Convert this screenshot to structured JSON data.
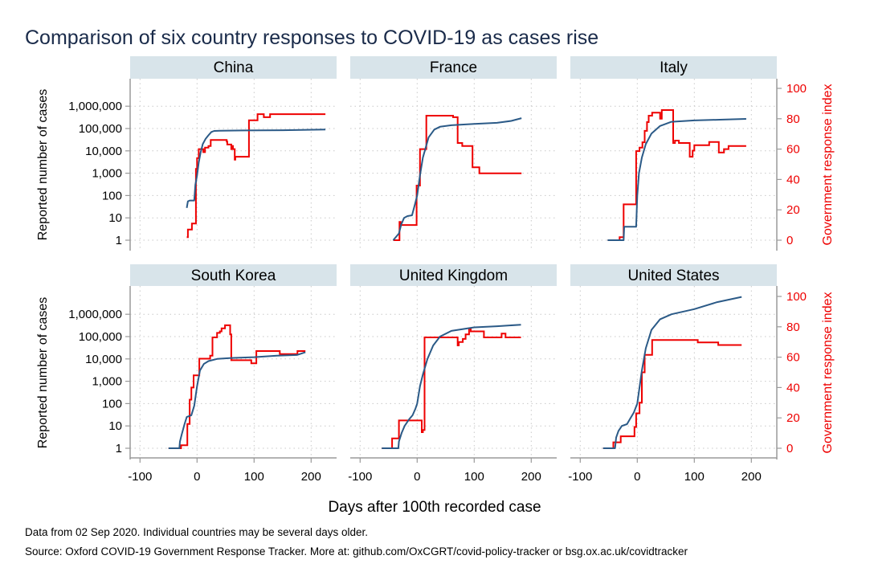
{
  "chart_data": {
    "type": "line",
    "title": "Comparison of six country responses to COVID-19 as cases rise",
    "xlabel": "Days after 100th recorded case",
    "ylabel_left": "Reported number of cases",
    "ylabel_right": "Government response index",
    "xticks": [
      -100,
      0,
      100,
      200
    ],
    "xtick_labels": [
      "-100",
      "0",
      "100",
      "200"
    ],
    "xlim": [
      -117,
      245
    ],
    "yscale_left": "log",
    "ylim_left_log10": [
      0,
      7.2
    ],
    "yticks_left": [
      1,
      10,
      100,
      1000,
      10000,
      100000,
      1000000
    ],
    "ytick_labels_left": [
      "1",
      "10",
      "100",
      "1,000",
      "10,000",
      "100,000",
      "1,000,000"
    ],
    "ylim_right": [
      0,
      105
    ],
    "yticks_right": [
      0,
      20,
      40,
      60,
      80,
      100
    ],
    "ytick_labels_right": [
      "0",
      "20",
      "40",
      "60",
      "80",
      "100"
    ],
    "grid": true,
    "colors": {
      "cases": "#2b5a87",
      "index": "#ee0000",
      "strip": "#d8e4ea"
    },
    "series_names": [
      "Reported number of cases",
      "Government response index"
    ],
    "panels": [
      {
        "name": "China",
        "cases": [
          [
            -18,
            28
          ],
          [
            -16,
            55
          ],
          [
            -13,
            60
          ],
          [
            -5,
            60
          ],
          [
            -3,
            300
          ],
          [
            0,
            800
          ],
          [
            3,
            3000
          ],
          [
            6,
            8000
          ],
          [
            10,
            20000
          ],
          [
            15,
            35000
          ],
          [
            20,
            50000
          ],
          [
            25,
            70000
          ],
          [
            30,
            78000
          ],
          [
            40,
            80000
          ],
          [
            80,
            82000
          ],
          [
            150,
            84000
          ],
          [
            225,
            90000
          ]
        ],
        "index": [
          [
            -18,
            2
          ],
          [
            -16,
            7
          ],
          [
            -11,
            7
          ],
          [
            -9,
            11
          ],
          [
            -5,
            11
          ],
          [
            -2,
            47
          ],
          [
            0,
            54
          ],
          [
            3,
            60
          ],
          [
            8,
            60
          ],
          [
            11,
            58
          ],
          [
            14,
            61
          ],
          [
            20,
            62
          ],
          [
            24,
            66
          ],
          [
            44,
            66
          ],
          [
            52,
            65
          ],
          [
            53,
            63
          ],
          [
            60,
            60
          ],
          [
            61,
            62
          ],
          [
            63,
            60
          ],
          [
            66,
            53
          ],
          [
            67,
            55
          ],
          [
            90,
            55
          ],
          [
            91,
            79
          ],
          [
            102,
            79
          ],
          [
            106,
            83
          ],
          [
            115,
            83
          ],
          [
            117,
            81
          ],
          [
            127,
            81
          ],
          [
            128,
            83
          ],
          [
            225,
            83
          ]
        ]
      },
      {
        "name": "France",
        "cases": [
          [
            -42,
            1
          ],
          [
            -32,
            2
          ],
          [
            -28,
            5
          ],
          [
            -23,
            10
          ],
          [
            -17,
            12
          ],
          [
            -9,
            13
          ],
          [
            -4,
            40
          ],
          [
            0,
            100
          ],
          [
            5,
            800
          ],
          [
            10,
            5000
          ],
          [
            20,
            40000
          ],
          [
            30,
            90000
          ],
          [
            40,
            120000
          ],
          [
            60,
            140000
          ],
          [
            100,
            160000
          ],
          [
            140,
            180000
          ],
          [
            165,
            220000
          ],
          [
            183,
            290000
          ]
        ],
        "index": [
          [
            -42,
            0
          ],
          [
            -32,
            0
          ],
          [
            -31,
            12
          ],
          [
            -29,
            10
          ],
          [
            -15,
            10
          ],
          [
            -1,
            36
          ],
          [
            3,
            36
          ],
          [
            5,
            60
          ],
          [
            8,
            60
          ],
          [
            16,
            82
          ],
          [
            60,
            82
          ],
          [
            63,
            81
          ],
          [
            69,
            81
          ],
          [
            71,
            64
          ],
          [
            79,
            62
          ],
          [
            96,
            62
          ],
          [
            97,
            48
          ],
          [
            106,
            48
          ],
          [
            109,
            44
          ],
          [
            183,
            44
          ]
        ]
      },
      {
        "name": "Italy",
        "cases": [
          [
            -52,
            1
          ],
          [
            -24,
            1
          ],
          [
            -23,
            4
          ],
          [
            -2,
            4
          ],
          [
            0,
            100
          ],
          [
            3,
            1000
          ],
          [
            8,
            5000
          ],
          [
            15,
            20000
          ],
          [
            25,
            60000
          ],
          [
            40,
            130000
          ],
          [
            60,
            200000
          ],
          [
            100,
            230000
          ],
          [
            150,
            250000
          ],
          [
            191,
            270000
          ]
        ],
        "index": [
          [
            -52,
            0
          ],
          [
            -31,
            2
          ],
          [
            -24,
            23.6
          ],
          [
            -2,
            58.7
          ],
          [
            4,
            61
          ],
          [
            9,
            64.5
          ],
          [
            13,
            72
          ],
          [
            17,
            77.8
          ],
          [
            20,
            82
          ],
          [
            26,
            84
          ],
          [
            40,
            80
          ],
          [
            43,
            85.7
          ],
          [
            63,
            64
          ],
          [
            66,
            65.6
          ],
          [
            73,
            64
          ],
          [
            92,
            55
          ],
          [
            97,
            59
          ],
          [
            100,
            62.6
          ],
          [
            126,
            64.7
          ],
          [
            143,
            57.7
          ],
          [
            152,
            60
          ],
          [
            160,
            62
          ],
          [
            191,
            62
          ]
        ]
      },
      {
        "name": "South Korea",
        "cases": [
          [
            -50,
            1
          ],
          [
            -31,
            1
          ],
          [
            -30,
            2
          ],
          [
            -27,
            4
          ],
          [
            -22,
            12
          ],
          [
            -18,
            25
          ],
          [
            -10,
            30
          ],
          [
            -5,
            80
          ],
          [
            0,
            600
          ],
          [
            5,
            3000
          ],
          [
            12,
            6000
          ],
          [
            20,
            8000
          ],
          [
            35,
            10000
          ],
          [
            60,
            11000
          ],
          [
            100,
            12000
          ],
          [
            140,
            14000
          ],
          [
            175,
            15000
          ],
          [
            190,
            20000
          ]
        ],
        "index": [
          [
            -50,
            0
          ],
          [
            -30,
            0
          ],
          [
            -28,
            2
          ],
          [
            -20,
            2
          ],
          [
            -17,
            16
          ],
          [
            -13,
            32
          ],
          [
            -10,
            40
          ],
          [
            -6,
            48
          ],
          [
            3,
            48
          ],
          [
            4,
            59
          ],
          [
            20,
            59
          ],
          [
            23,
            61
          ],
          [
            27,
            73
          ],
          [
            33,
            73
          ],
          [
            35,
            76
          ],
          [
            40,
            77
          ],
          [
            43,
            79
          ],
          [
            49,
            81
          ],
          [
            56,
            81
          ],
          [
            58,
            75
          ],
          [
            60,
            58
          ],
          [
            90,
            58
          ],
          [
            95,
            56
          ],
          [
            102,
            56
          ],
          [
            104,
            64
          ],
          [
            140,
            64
          ],
          [
            145,
            62
          ],
          [
            157,
            62
          ],
          [
            175,
            62
          ],
          [
            176,
            64
          ],
          [
            190,
            64
          ]
        ]
      },
      {
        "name": "United Kingdom",
        "cases": [
          [
            -62,
            1
          ],
          [
            -33,
            1
          ],
          [
            -32,
            2
          ],
          [
            -27,
            5
          ],
          [
            -22,
            10
          ],
          [
            -14,
            20
          ],
          [
            -8,
            30
          ],
          [
            -3,
            60
          ],
          [
            0,
            100
          ],
          [
            5,
            600
          ],
          [
            10,
            2000
          ],
          [
            18,
            10000
          ],
          [
            28,
            40000
          ],
          [
            40,
            100000
          ],
          [
            60,
            180000
          ],
          [
            100,
            260000
          ],
          [
            140,
            290000
          ],
          [
            182,
            340000
          ]
        ],
        "index": [
          [
            -62,
            0
          ],
          [
            -44,
            0
          ],
          [
            -44,
            6.5
          ],
          [
            -32,
            6.5
          ],
          [
            -32,
            18.3
          ],
          [
            6,
            18.3
          ],
          [
            8,
            10.6
          ],
          [
            10,
            12
          ],
          [
            13,
            73
          ],
          [
            69,
            73
          ],
          [
            71,
            67.7
          ],
          [
            73,
            70
          ],
          [
            80,
            72
          ],
          [
            85,
            75
          ],
          [
            91,
            79
          ],
          [
            94,
            77
          ],
          [
            117,
            73
          ],
          [
            148,
            75.5
          ],
          [
            155,
            73
          ],
          [
            182,
            73
          ]
        ]
      },
      {
        "name": "United States",
        "cases": [
          [
            -60,
            1
          ],
          [
            -39,
            1
          ],
          [
            -37,
            3
          ],
          [
            -33,
            6
          ],
          [
            -27,
            10
          ],
          [
            -18,
            12
          ],
          [
            -13,
            20
          ],
          [
            -6,
            40
          ],
          [
            0,
            100
          ],
          [
            8,
            3000
          ],
          [
            15,
            30000
          ],
          [
            25,
            200000
          ],
          [
            40,
            600000
          ],
          [
            60,
            1000000
          ],
          [
            100,
            1700000
          ],
          [
            140,
            3500000
          ],
          [
            183,
            6000000
          ]
        ],
        "index": [
          [
            -60,
            0
          ],
          [
            -42,
            0
          ],
          [
            -42,
            3.9
          ],
          [
            -29,
            3.9
          ],
          [
            -29,
            7.9
          ],
          [
            -7,
            7.9
          ],
          [
            -5,
            14
          ],
          [
            -2,
            23
          ],
          [
            4,
            30
          ],
          [
            8,
            50
          ],
          [
            13,
            61.5
          ],
          [
            18,
            61.5
          ],
          [
            26,
            71.3
          ],
          [
            103,
            71.3
          ],
          [
            106,
            69.7
          ],
          [
            140,
            69.7
          ],
          [
            142,
            68
          ],
          [
            183,
            68
          ]
        ]
      }
    ]
  },
  "footer": {
    "note": "Data from 02 Sep 2020. Individual countries may be several days older.",
    "source": "Source: Oxford COVID-19 Government Response Tracker. More at: github.com/OxCGRT/covid-policy-tracker or bsg.ox.ac.uk/covidtracker"
  }
}
